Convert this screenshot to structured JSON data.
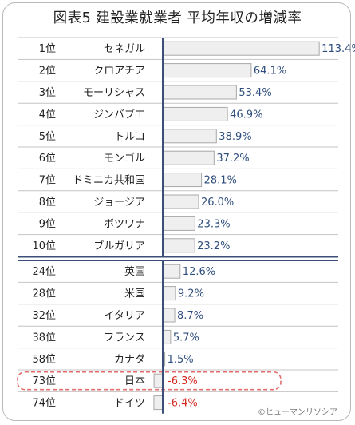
{
  "title": "図表5 建設業就業者 平均年収の増減率",
  "credit": "©ヒューマンリソシア",
  "highlight_country": "日本",
  "colors": {
    "bar_fill": "#efefef",
    "bar_stroke": "#a8a8a8",
    "value_text": "#2f4e7d",
    "negative_text": "#d42a22",
    "axis_line": "#3b4f78",
    "highlight_border": "#e26e6e",
    "row_line": "#c4c4c4"
  },
  "chart_data": {
    "type": "bar",
    "orientation": "horizontal",
    "unit": "%",
    "groups": [
      {
        "name": "top10",
        "rows": [
          {
            "rank": "1位",
            "country": "セネガル",
            "value": 113.4,
            "label": "113.4%"
          },
          {
            "rank": "2位",
            "country": "クロアチア",
            "value": 64.1,
            "label": "64.1%"
          },
          {
            "rank": "3位",
            "country": "モーリシャス",
            "value": 53.4,
            "label": "53.4%"
          },
          {
            "rank": "4位",
            "country": "ジンバブエ",
            "value": 46.9,
            "label": "46.9%"
          },
          {
            "rank": "5位",
            "country": "トルコ",
            "value": 38.9,
            "label": "38.9%"
          },
          {
            "rank": "6位",
            "country": "モンゴル",
            "value": 37.2,
            "label": "37.2%"
          },
          {
            "rank": "7位",
            "country": "ドミニカ共和国",
            "value": 28.1,
            "label": "28.1%"
          },
          {
            "rank": "8位",
            "country": "ジョージア",
            "value": 26.0,
            "label": "26.0%"
          },
          {
            "rank": "9位",
            "country": "ボツワナ",
            "value": 23.3,
            "label": "23.3%"
          },
          {
            "rank": "10位",
            "country": "ブルガリア",
            "value": 23.2,
            "label": "23.2%"
          }
        ]
      },
      {
        "name": "selected",
        "rows": [
          {
            "rank": "24位",
            "country": "英国",
            "value": 12.6,
            "label": "12.6%"
          },
          {
            "rank": "28位",
            "country": "米国",
            "value": 9.2,
            "label": "9.2%"
          },
          {
            "rank": "32位",
            "country": "イタリア",
            "value": 8.7,
            "label": "8.7%"
          },
          {
            "rank": "38位",
            "country": "フランス",
            "value": 5.7,
            "label": "5.7%"
          },
          {
            "rank": "58位",
            "country": "カナダ",
            "value": 1.5,
            "label": "1.5%"
          },
          {
            "rank": "73位",
            "country": "日本",
            "value": -6.3,
            "label": "-6.3%"
          },
          {
            "rank": "74位",
            "country": "ドイツ",
            "value": -6.4,
            "label": "-6.4%"
          }
        ]
      }
    ],
    "xlim": [
      -6.4,
      113.4
    ]
  }
}
